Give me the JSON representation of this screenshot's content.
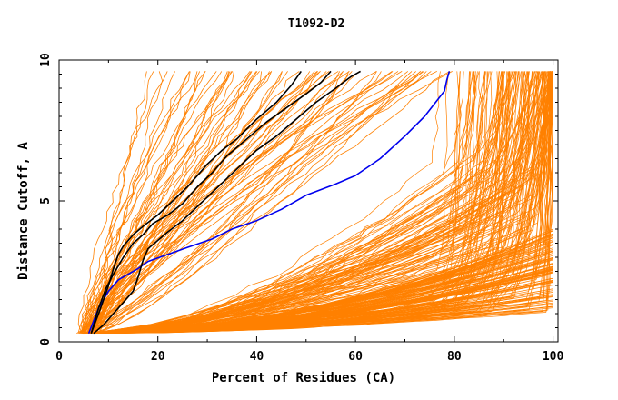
{
  "chart_data": {
    "type": "line",
    "title": "T1092-D2",
    "xlabel": "Percent of Residues (CA)",
    "ylabel": "Distance Cutoff, A",
    "xlim": [
      0,
      101
    ],
    "ylim": [
      0,
      10
    ],
    "x_ticks": [
      "0",
      "20",
      "40",
      "60",
      "80",
      "100"
    ],
    "y_ticks": [
      "0",
      "5",
      "10"
    ],
    "grid": false,
    "colors": {
      "other_models": "#ff8000",
      "highlight_blue": "#0000ee",
      "highlight_black": "#000000"
    },
    "series": [
      {
        "color": "blue",
        "x": [
          6,
          8,
          10,
          12,
          14,
          16,
          18,
          22,
          26,
          31,
          35,
          40,
          45,
          50,
          56,
          60,
          65,
          70,
          74,
          78,
          78.5,
          79
        ],
        "y": [
          0.3,
          1.2,
          1.8,
          2.2,
          2.4,
          2.6,
          2.85,
          3.1,
          3.35,
          3.65,
          4.0,
          4.3,
          4.7,
          5.2,
          5.6,
          5.9,
          6.5,
          7.3,
          8.0,
          8.9,
          9.3,
          9.6
        ]
      },
      {
        "color": "black",
        "x": [
          6.5,
          8,
          10,
          11,
          12,
          13,
          15,
          17,
          20,
          23,
          26,
          28,
          30,
          33,
          36,
          40,
          44,
          47,
          49
        ],
        "y": [
          0.3,
          1.0,
          2.0,
          2.6,
          3.1,
          3.4,
          3.8,
          4.1,
          4.5,
          5.0,
          5.5,
          5.9,
          6.3,
          6.8,
          7.2,
          7.9,
          8.5,
          9.1,
          9.6
        ]
      },
      {
        "color": "black",
        "x": [
          6.5,
          8,
          9.5,
          11,
          13,
          15,
          17,
          19,
          22,
          25,
          28,
          31,
          34,
          38,
          42,
          46,
          50,
          53,
          55
        ],
        "y": [
          0.3,
          1.2,
          1.9,
          2.4,
          3.0,
          3.5,
          3.8,
          4.2,
          4.5,
          4.9,
          5.5,
          6.0,
          6.6,
          7.2,
          7.8,
          8.3,
          8.8,
          9.2,
          9.6
        ]
      },
      {
        "color": "black",
        "x": [
          7,
          9,
          11,
          13,
          15,
          16,
          17,
          18,
          20,
          22,
          25,
          28,
          31,
          34,
          37,
          40,
          44,
          48,
          52,
          56,
          59,
          61
        ],
        "y": [
          0.3,
          0.6,
          1.0,
          1.4,
          1.8,
          2.3,
          2.9,
          3.3,
          3.6,
          3.9,
          4.3,
          4.8,
          5.3,
          5.8,
          6.3,
          6.8,
          7.3,
          7.9,
          8.5,
          9.0,
          9.4,
          9.6
        ]
      }
    ]
  }
}
